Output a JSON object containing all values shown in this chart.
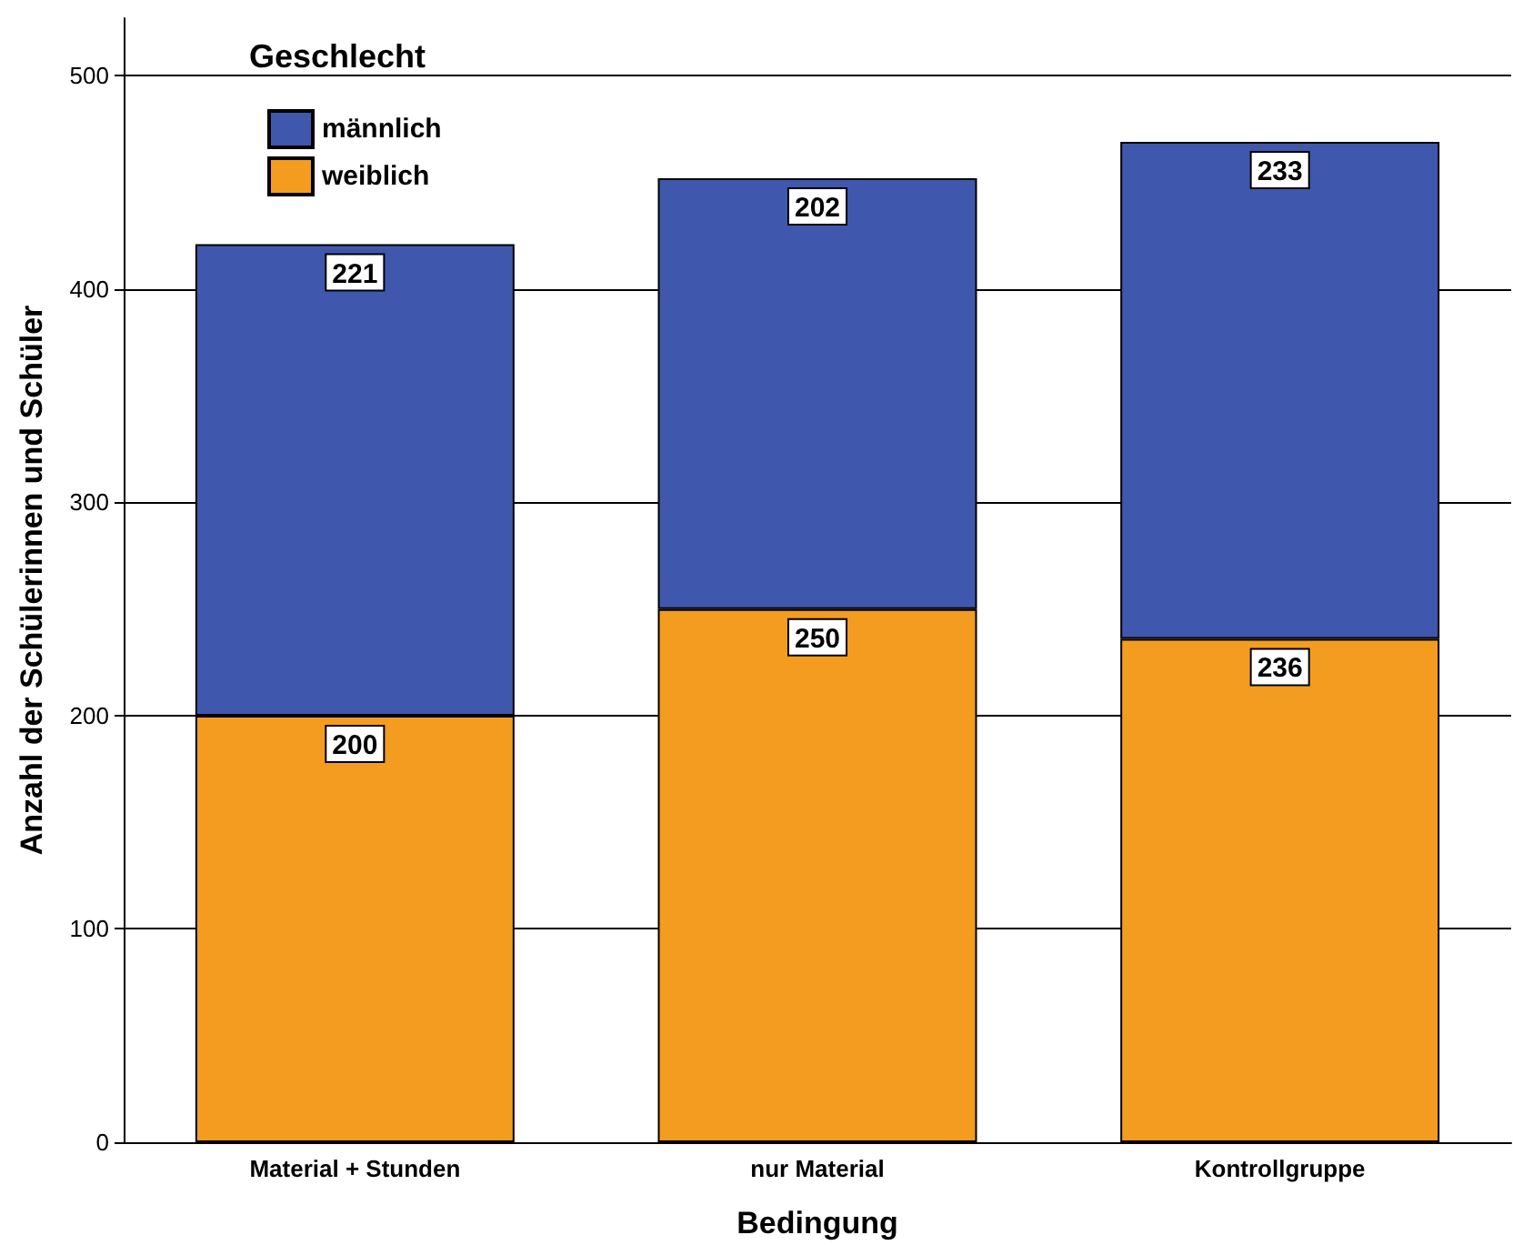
{
  "chart_data": {
    "type": "bar",
    "stacked": true,
    "xlabel": "Bedingung",
    "ylabel": "Anzahl der Schülerinnen und Schüler",
    "legend_title": "Geschlecht",
    "legend": "top left",
    "categories": [
      "Material + Stunden",
      "nur Material",
      "Kontrollgruppe"
    ],
    "series": [
      {
        "name": "weiblich",
        "color": "#f39c1f",
        "values": [
          200,
          250,
          236
        ]
      },
      {
        "name": "männlich",
        "color": "#3f58ad",
        "values": [
          221,
          202,
          233
        ]
      }
    ],
    "ylim": [
      0,
      527
    ],
    "yticks": [
      0,
      100,
      200,
      300,
      400,
      500
    ],
    "grid": "y",
    "data_labels": true
  }
}
